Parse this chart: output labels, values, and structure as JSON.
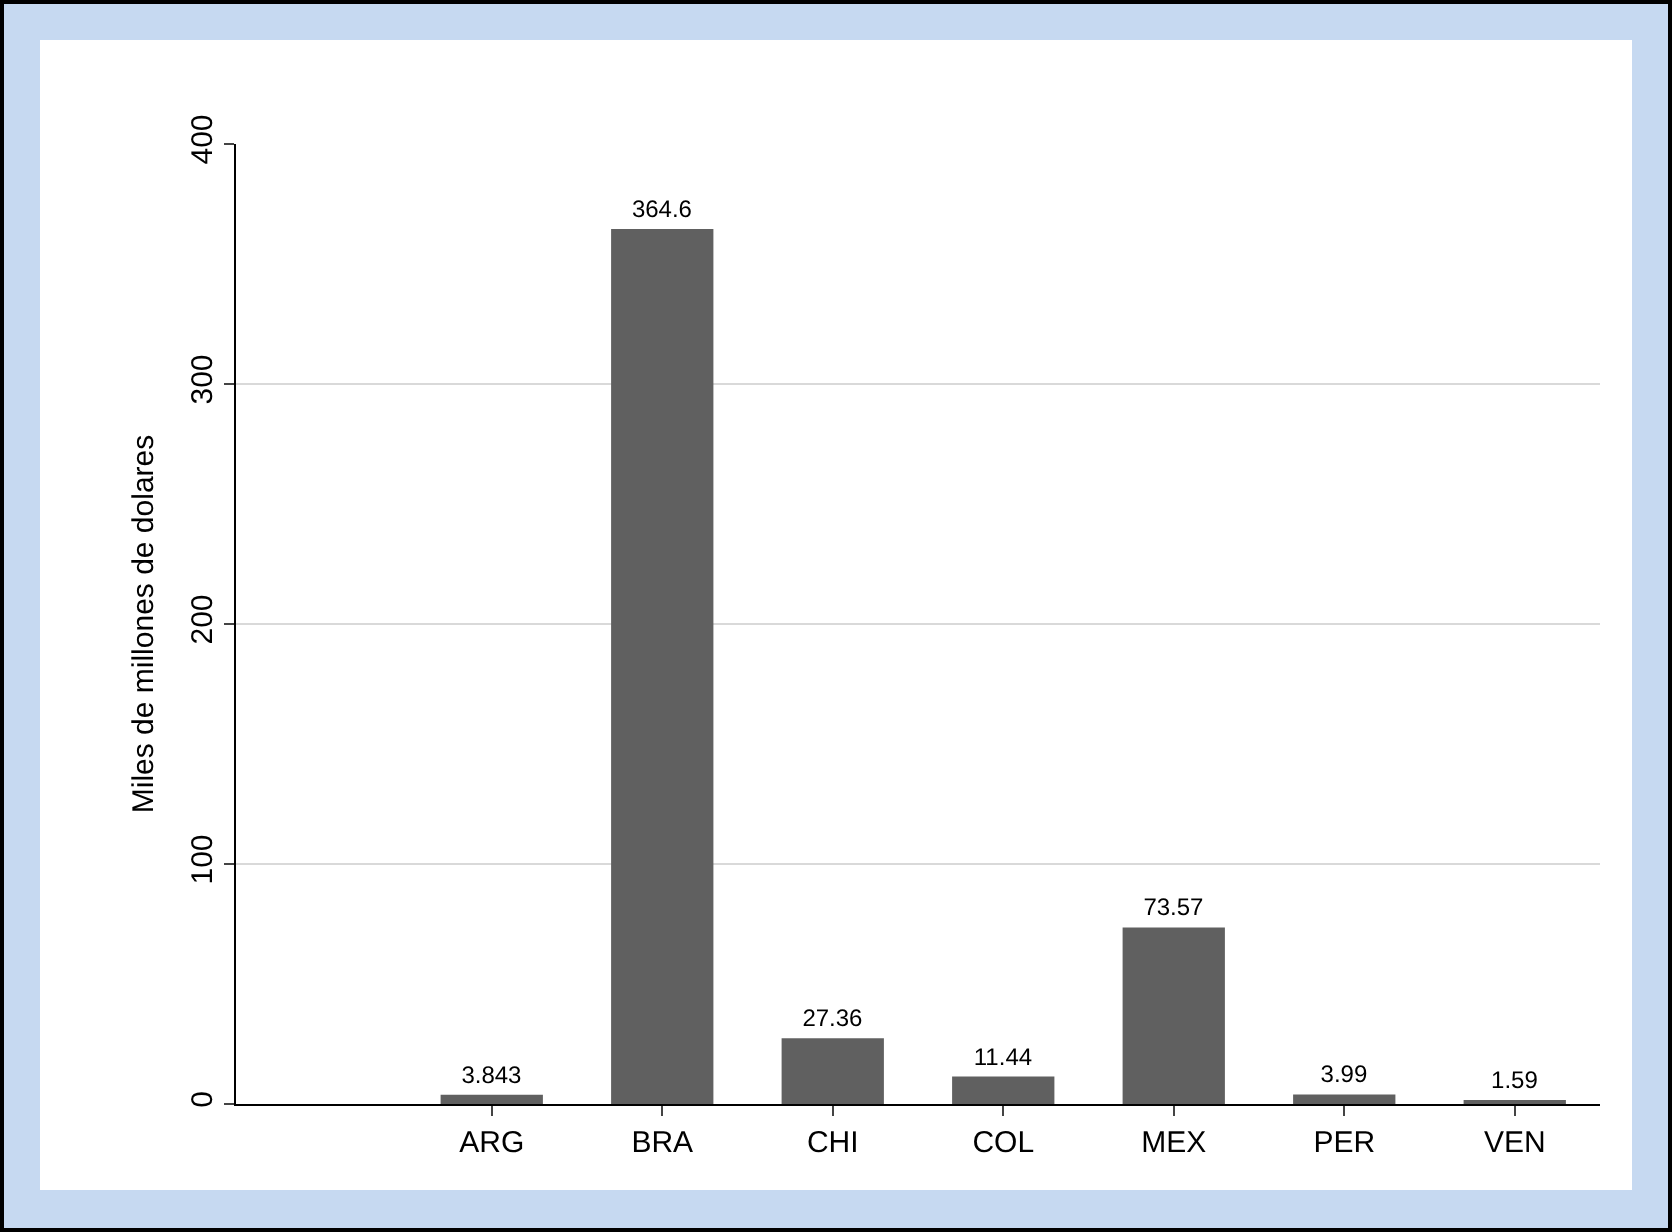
{
  "chart_data": {
    "type": "bar",
    "ylabel": "Miles de millones de dolares",
    "categories": [
      null,
      "ARG",
      "BRA",
      "CHI",
      "COL",
      "MEX",
      "PER",
      "VEN"
    ],
    "values": [
      null,
      3.843,
      364.6,
      27.36,
      11.44,
      73.57,
      3.99,
      1.59
    ],
    "color": "#606060",
    "ylim": [
      0,
      400
    ],
    "yticks": [
      0,
      100,
      200,
      300,
      400
    ],
    "grid": true,
    "data_labels": true
  }
}
